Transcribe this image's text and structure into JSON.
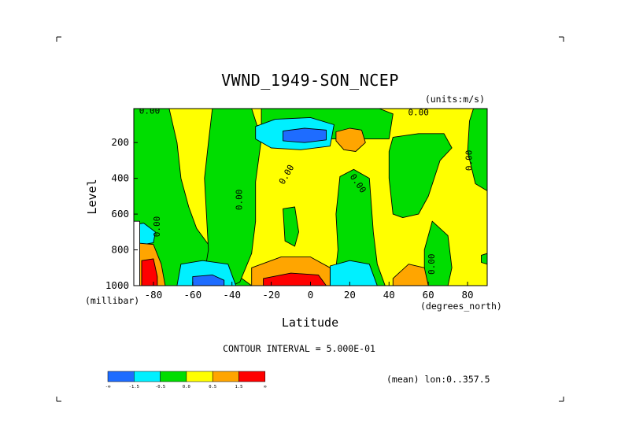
{
  "chart_data": {
    "type": "heatmap",
    "title": "VWND_1949-SON_NCEP",
    "units_label": "(units:m/s)",
    "xlabel": "Latitude",
    "x_unit_label": "(degrees_north)",
    "ylabel": "Level",
    "y_unit_label": "(millibar)",
    "xlim": [
      -90,
      90
    ],
    "ylim": [
      1000,
      10
    ],
    "x_ticks": [
      -80,
      -60,
      -40,
      -20,
      0,
      20,
      40,
      60,
      80
    ],
    "x_tick_labels": [
      "-80",
      "-60",
      "-40",
      "-20",
      "0",
      "20",
      "40",
      "60",
      "80"
    ],
    "y_ticks": [
      200,
      400,
      600,
      800,
      1000
    ],
    "y_tick_labels": [
      "200",
      "400",
      "600",
      "800",
      "1000"
    ],
    "contour_interval_text": "CONTOUR INTERVAL = 5.000E-01",
    "subset_text": "(mean) lon:0..357.5",
    "contour_labels": [
      {
        "text": "0.00",
        "lat": -82,
        "lev": 25,
        "rotate": 0
      },
      {
        "text": "0.00",
        "lat": 55,
        "lev": 35,
        "rotate": 0
      },
      {
        "text": "0.00",
        "lat": -36,
        "lev": 520,
        "rotate": -90
      },
      {
        "text": "0.00",
        "lat": -12,
        "lev": 380,
        "rotate": -60
      },
      {
        "text": "0.00",
        "lat": 24,
        "lev": 430,
        "rotate": 55
      },
      {
        "text": "0.00",
        "lat": -78,
        "lev": 670,
        "rotate": -90
      },
      {
        "text": "0.00",
        "lat": 81,
        "lev": 300,
        "rotate": -90
      },
      {
        "text": "0.00",
        "lat": 62,
        "lev": 880,
        "rotate": -90
      }
    ],
    "levels": [
      -2.0,
      -1.5,
      -0.5,
      0.0,
      0.5,
      1.5,
      2.0
    ],
    "colorbar": {
      "colors": [
        "#1e6cff",
        "#00f0ff",
        "#00dd00",
        "#ffff00",
        "#ffa500",
        "#ff0000"
      ],
      "labels": [
        "-∞",
        "-1.5",
        "-0.5",
        "0.0",
        "0.5",
        "1.5",
        "∞"
      ]
    },
    "background_value_color": "#ffff00",
    "regions": [
      {
        "fill": "#00dd00",
        "pts": [
          [
            -90,
            10
          ],
          [
            -72,
            10
          ],
          [
            -68,
            200
          ],
          [
            -66,
            400
          ],
          [
            -62,
            560
          ],
          [
            -58,
            680
          ],
          [
            -50,
            800
          ],
          [
            -42,
            880
          ],
          [
            -35,
            960
          ],
          [
            -30,
            1000
          ],
          [
            -90,
            1000
          ]
        ]
      },
      {
        "fill": "#00dd00",
        "pts": [
          [
            -50,
            10
          ],
          [
            -30,
            10
          ],
          [
            -25,
            180
          ],
          [
            -28,
            420
          ],
          [
            -28,
            640
          ],
          [
            -30,
            820
          ],
          [
            -36,
            980
          ],
          [
            -40,
            1000
          ],
          [
            -55,
            1000
          ],
          [
            -52,
            800
          ],
          [
            -53,
            600
          ],
          [
            -54,
            400
          ],
          [
            -52,
            200
          ]
        ]
      },
      {
        "fill": "#00dd00",
        "pts": [
          [
            -25,
            10
          ],
          [
            35,
            10
          ],
          [
            42,
            40
          ],
          [
            40,
            180
          ],
          [
            5,
            180
          ],
          [
            -18,
            220
          ],
          [
            -25,
            120
          ]
        ]
      },
      {
        "fill": "#00dd00",
        "pts": [
          [
            42,
            170
          ],
          [
            55,
            150
          ],
          [
            68,
            150
          ],
          [
            72,
            230
          ],
          [
            66,
            300
          ],
          [
            60,
            500
          ],
          [
            55,
            600
          ],
          [
            47,
            620
          ],
          [
            42,
            600
          ],
          [
            40,
            400
          ],
          [
            40,
            250
          ]
        ]
      },
      {
        "fill": "#00dd00",
        "pts": [
          [
            83,
            10
          ],
          [
            90,
            10
          ],
          [
            90,
            470
          ],
          [
            84,
            430
          ],
          [
            80,
            250
          ],
          [
            81,
            80
          ]
        ]
      },
      {
        "fill": "#00dd00",
        "pts": [
          [
            15,
            390
          ],
          [
            22,
            350
          ],
          [
            30,
            400
          ],
          [
            32,
            700
          ],
          [
            34,
            880
          ],
          [
            38,
            1000
          ],
          [
            12,
            1000
          ],
          [
            14,
            800
          ],
          [
            13,
            600
          ]
        ]
      },
      {
        "fill": "#00dd00",
        "pts": [
          [
            62,
            640
          ],
          [
            70,
            720
          ],
          [
            72,
            900
          ],
          [
            70,
            1000
          ],
          [
            58,
            1000
          ],
          [
            58,
            800
          ]
        ]
      },
      {
        "fill": "#00dd00",
        "pts": [
          [
            -14,
            570
          ],
          [
            -8,
            560
          ],
          [
            -6,
            700
          ],
          [
            -8,
            780
          ],
          [
            -13,
            750
          ]
        ]
      },
      {
        "fill": "#00dd00",
        "pts": [
          [
            87,
            830
          ],
          [
            90,
            820
          ],
          [
            90,
            880
          ],
          [
            87,
            870
          ]
        ]
      },
      {
        "fill": "#00f0ff",
        "pts": [
          [
            -28,
            110
          ],
          [
            -18,
            70
          ],
          [
            0,
            60
          ],
          [
            12,
            100
          ],
          [
            10,
            220
          ],
          [
            -5,
            240
          ],
          [
            -20,
            230
          ],
          [
            -28,
            180
          ]
        ]
      },
      {
        "fill": "#1e6cff",
        "pts": [
          [
            -14,
            135
          ],
          [
            -3,
            120
          ],
          [
            8,
            130
          ],
          [
            8,
            185
          ],
          [
            -3,
            200
          ],
          [
            -14,
            190
          ]
        ]
      },
      {
        "fill": "#ffa500",
        "pts": [
          [
            13,
            140
          ],
          [
            20,
            120
          ],
          [
            26,
            130
          ],
          [
            28,
            200
          ],
          [
            23,
            250
          ],
          [
            17,
            240
          ],
          [
            13,
            190
          ]
        ]
      },
      {
        "fill": "#00f0ff",
        "pts": [
          [
            -66,
            880
          ],
          [
            -55,
            860
          ],
          [
            -42,
            880
          ],
          [
            -38,
            1000
          ],
          [
            -68,
            1000
          ]
        ]
      },
      {
        "fill": "#1e6cff",
        "pts": [
          [
            -60,
            950
          ],
          [
            -50,
            940
          ],
          [
            -44,
            970
          ],
          [
            -44,
            1000
          ],
          [
            -60,
            1000
          ]
        ]
      },
      {
        "fill": "#00f0ff",
        "pts": [
          [
            10,
            890
          ],
          [
            20,
            860
          ],
          [
            30,
            880
          ],
          [
            34,
            1000
          ],
          [
            10,
            1000
          ]
        ]
      },
      {
        "fill": "#ffa500",
        "pts": [
          [
            -30,
            900
          ],
          [
            -15,
            840
          ],
          [
            0,
            840
          ],
          [
            10,
            900
          ],
          [
            10,
            1000
          ],
          [
            -30,
            1000
          ]
        ]
      },
      {
        "fill": "#ff0000",
        "pts": [
          [
            -24,
            960
          ],
          [
            -10,
            930
          ],
          [
            4,
            940
          ],
          [
            8,
            1000
          ],
          [
            -24,
            1000
          ]
        ]
      },
      {
        "fill": "#ffa500",
        "pts": [
          [
            42,
            960
          ],
          [
            50,
            880
          ],
          [
            58,
            900
          ],
          [
            60,
            1000
          ],
          [
            42,
            1000
          ]
        ]
      },
      {
        "fill": "#00f0ff",
        "pts": [
          [
            -90,
            660
          ],
          [
            -85,
            650
          ],
          [
            -79,
            700
          ],
          [
            -80,
            760
          ],
          [
            -90,
            780
          ]
        ]
      },
      {
        "fill": "#ffa500",
        "pts": [
          [
            -90,
            760
          ],
          [
            -80,
            770
          ],
          [
            -76,
            880
          ],
          [
            -74,
            1000
          ],
          [
            -90,
            1000
          ]
        ]
      },
      {
        "fill": "#ff0000",
        "pts": [
          [
            -86,
            860
          ],
          [
            -80,
            850
          ],
          [
            -78,
            950
          ],
          [
            -78,
            1000
          ],
          [
            -86,
            1000
          ]
        ]
      },
      {
        "fill": "#ffffff",
        "pts": [
          [
            -90,
            640
          ],
          [
            -87,
            640
          ],
          [
            -87,
            1000
          ],
          [
            -90,
            1000
          ]
        ]
      }
    ]
  }
}
